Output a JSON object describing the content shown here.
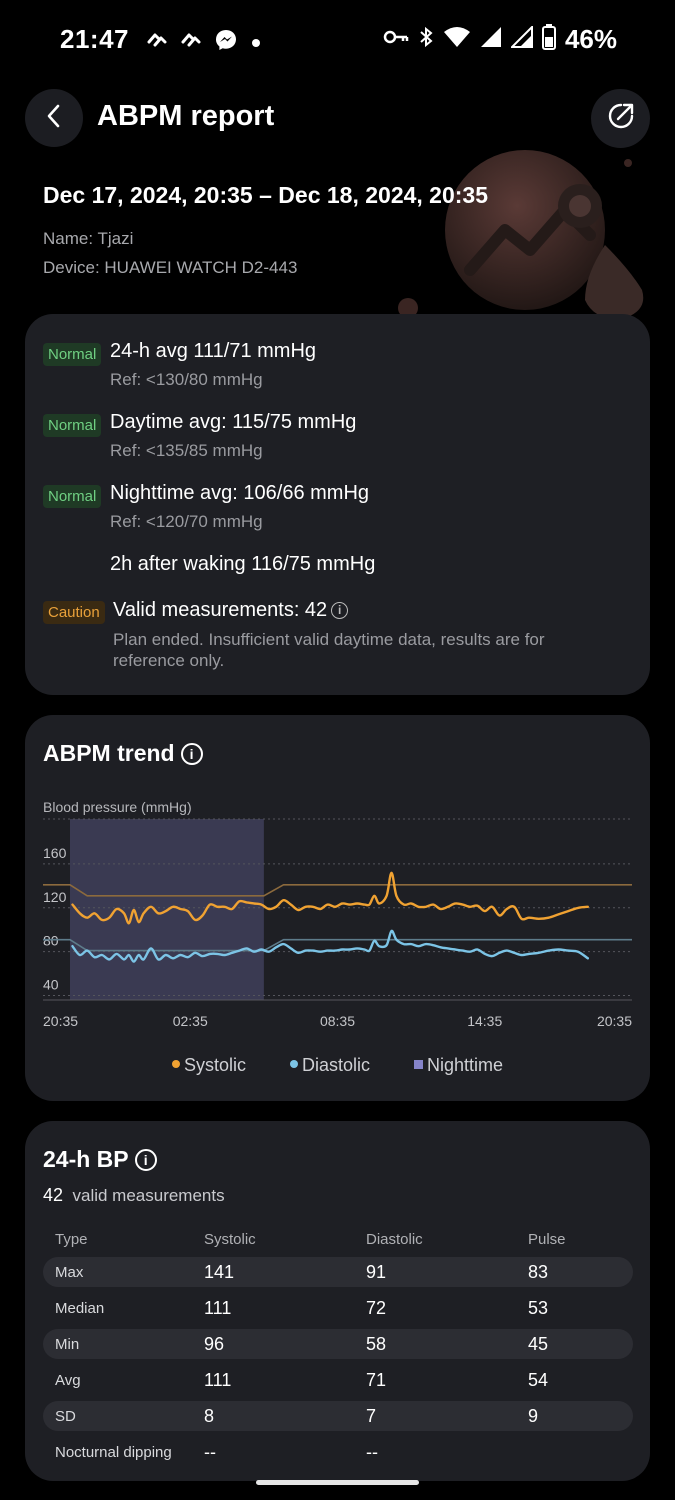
{
  "status_bar": {
    "time": "21:47",
    "battery": "46%",
    "icons": [
      "huawei-health-icon",
      "huawei-health-icon",
      "messenger-icon",
      "dot-icon",
      "vpn-key-icon",
      "bluetooth-icon",
      "wifi-icon",
      "signal-icon",
      "signal-icon",
      "battery-icon"
    ]
  },
  "header": {
    "title": "ABPM report",
    "back_icon": "chevron-left-icon",
    "share_icon": "share-icon"
  },
  "report": {
    "period": "Dec 17, 2024, 20:35 – Dec 18, 2024, 20:35",
    "name": "Name: Tjazi",
    "device": "Device: HUAWEI WATCH D2-443"
  },
  "summary": {
    "items": [
      {
        "tag": "Normal",
        "text": "24-h avg 111/71 mmHg",
        "ref": "Ref: <130/80 mmHg"
      },
      {
        "tag": "Normal",
        "text": "Daytime avg: 115/75 mmHg",
        "ref": "Ref: <135/85 mmHg"
      },
      {
        "tag": "Normal",
        "text": "Nighttime avg: 106/66 mmHg",
        "ref": "Ref: <120/70 mmHg"
      }
    ],
    "waking": "2h after waking 116/75 mmHg",
    "valid": {
      "tag": "Caution",
      "text": "Valid measurements: 42",
      "note_line1": "Plan ended. Insufficient valid daytime data, results are for",
      "note_line2": "reference only."
    }
  },
  "trend": {
    "title": "ABPM trend",
    "info": "i"
  },
  "chart_data": {
    "type": "line",
    "ylabel": "Blood pressure (mmHg)",
    "y_ticks": [
      "160",
      "120",
      "80",
      "40"
    ],
    "x_ticks": [
      "20:35",
      "02:35",
      "08:35",
      "14:35",
      "20:35"
    ],
    "ylim": [
      25,
      190
    ],
    "x_range_hours": [
      0,
      24
    ],
    "nighttime_span_hours": [
      1.1,
      9.0
    ],
    "legend": [
      "Systolic",
      "Diastolic",
      "Nighttime"
    ],
    "colors": {
      "systolic": "#f0a232",
      "diastolic": "#7cc4e6",
      "nighttime": "#8583c9",
      "threshold_sys": "#8c6a3d",
      "threshold_dia": "#5d7b8a"
    },
    "thresholds": {
      "systolic": [
        [
          0,
          130
        ],
        [
          1.1,
          130
        ],
        [
          1.8,
          120
        ],
        [
          9.0,
          120
        ],
        [
          9.8,
          130
        ],
        [
          24,
          130
        ]
      ],
      "diastolic": [
        [
          0,
          80
        ],
        [
          1.1,
          80
        ],
        [
          1.8,
          70
        ],
        [
          9.0,
          70
        ],
        [
          9.8,
          80
        ],
        [
          24,
          80
        ]
      ]
    },
    "series": [
      {
        "name": "Systolic",
        "points": [
          [
            1.2,
            112
          ],
          [
            1.5,
            104
          ],
          [
            1.8,
            100
          ],
          [
            2.1,
            104
          ],
          [
            2.4,
            98
          ],
          [
            2.7,
            100
          ],
          [
            3.0,
            108
          ],
          [
            3.3,
            104
          ],
          [
            3.5,
            95
          ],
          [
            3.7,
            107
          ],
          [
            3.9,
            96
          ],
          [
            4.1,
            104
          ],
          [
            4.4,
            110
          ],
          [
            4.7,
            104
          ],
          [
            5.0,
            106
          ],
          [
            5.3,
            110
          ],
          [
            5.6,
            108
          ],
          [
            5.9,
            106
          ],
          [
            6.2,
            98
          ],
          [
            6.5,
            102
          ],
          [
            6.8,
            112
          ],
          [
            7.1,
            110
          ],
          [
            7.4,
            110
          ],
          [
            7.7,
            108
          ],
          [
            8.0,
            115
          ],
          [
            8.3,
            114
          ],
          [
            8.6,
            113
          ],
          [
            8.9,
            112
          ],
          [
            9.2,
            108
          ],
          [
            9.5,
            110
          ],
          [
            9.8,
            116
          ],
          [
            10.1,
            112
          ],
          [
            10.4,
            107
          ],
          [
            10.7,
            110
          ],
          [
            11.0,
            110
          ],
          [
            11.3,
            108
          ],
          [
            11.6,
            112
          ],
          [
            11.9,
            110
          ],
          [
            12.2,
            113
          ],
          [
            12.5,
            112
          ],
          [
            12.8,
            113
          ],
          [
            13.1,
            112
          ],
          [
            13.3,
            112
          ],
          [
            13.5,
            120
          ],
          [
            13.7,
            113
          ],
          [
            14.0,
            120
          ],
          [
            14.2,
            141
          ],
          [
            14.4,
            120
          ],
          [
            14.7,
            112
          ],
          [
            15.0,
            113
          ],
          [
            15.3,
            110
          ],
          [
            15.6,
            110
          ],
          [
            15.9,
            112
          ],
          [
            16.2,
            108
          ],
          [
            16.5,
            110
          ],
          [
            16.8,
            113
          ],
          [
            17.1,
            112
          ],
          [
            17.4,
            110
          ],
          [
            17.7,
            111
          ],
          [
            18.0,
            106
          ],
          [
            18.3,
            110
          ],
          [
            18.6,
            102
          ],
          [
            18.9,
            108
          ],
          [
            19.2,
            110
          ],
          [
            19.5,
            99
          ],
          [
            19.8,
            100
          ],
          [
            20.2,
            99
          ],
          [
            20.6,
            100
          ],
          [
            21.0,
            103
          ],
          [
            21.4,
            106
          ],
          [
            21.8,
            109
          ],
          [
            22.2,
            110
          ]
        ]
      },
      {
        "name": "Diastolic",
        "points": [
          [
            1.2,
            74
          ],
          [
            1.5,
            66
          ],
          [
            1.8,
            70
          ],
          [
            2.1,
            64
          ],
          [
            2.4,
            66
          ],
          [
            2.7,
            62
          ],
          [
            3.0,
            67
          ],
          [
            3.3,
            62
          ],
          [
            3.5,
            66
          ],
          [
            3.7,
            60
          ],
          [
            3.9,
            66
          ],
          [
            4.1,
            62
          ],
          [
            4.4,
            72
          ],
          [
            4.7,
            62
          ],
          [
            5.0,
            66
          ],
          [
            5.3,
            63
          ],
          [
            5.6,
            66
          ],
          [
            5.9,
            64
          ],
          [
            6.2,
            68
          ],
          [
            6.5,
            65
          ],
          [
            6.8,
            67
          ],
          [
            7.1,
            67
          ],
          [
            7.4,
            66
          ],
          [
            7.7,
            68
          ],
          [
            8.0,
            70
          ],
          [
            8.3,
            72
          ],
          [
            8.6,
            69
          ],
          [
            8.9,
            71
          ],
          [
            9.2,
            69
          ],
          [
            9.5,
            73
          ],
          [
            9.8,
            76
          ],
          [
            10.1,
            72
          ],
          [
            10.4,
            68
          ],
          [
            10.7,
            70
          ],
          [
            11.0,
            70
          ],
          [
            11.3,
            69
          ],
          [
            11.6,
            70
          ],
          [
            11.9,
            70
          ],
          [
            12.2,
            71
          ],
          [
            12.5,
            71
          ],
          [
            12.8,
            72
          ],
          [
            13.1,
            71
          ],
          [
            13.3,
            70
          ],
          [
            13.5,
            79
          ],
          [
            13.7,
            74
          ],
          [
            14.0,
            75
          ],
          [
            14.2,
            88
          ],
          [
            14.4,
            80
          ],
          [
            14.7,
            76
          ],
          [
            15.0,
            76
          ],
          [
            15.3,
            74
          ],
          [
            15.6,
            76
          ],
          [
            15.9,
            75
          ],
          [
            16.2,
            73
          ],
          [
            16.5,
            72
          ],
          [
            16.8,
            71
          ],
          [
            17.1,
            70
          ],
          [
            17.4,
            69
          ],
          [
            17.7,
            71
          ],
          [
            18.0,
            67
          ],
          [
            18.3,
            65
          ],
          [
            18.6,
            68
          ],
          [
            18.9,
            70
          ],
          [
            19.2,
            68
          ],
          [
            19.5,
            66
          ],
          [
            19.8,
            67
          ],
          [
            20.2,
            68
          ],
          [
            20.6,
            70
          ],
          [
            21.0,
            71
          ],
          [
            21.4,
            70
          ],
          [
            21.8,
            69
          ],
          [
            22.2,
            63
          ]
        ]
      }
    ]
  },
  "bp24": {
    "title": "24-h BP",
    "count": "42",
    "count_label": "valid measurements",
    "headers": [
      "Type",
      "Systolic",
      "Diastolic",
      "Pulse"
    ],
    "rows": [
      {
        "type": "Max",
        "sys": "141",
        "dia": "91",
        "pulse": "83"
      },
      {
        "type": "Median",
        "sys": "111",
        "dia": "72",
        "pulse": "53"
      },
      {
        "type": "Min",
        "sys": "96",
        "dia": "58",
        "pulse": "45"
      },
      {
        "type": "Avg",
        "sys": "111",
        "dia": "71",
        "pulse": "54"
      },
      {
        "type": "SD",
        "sys": "8",
        "dia": "7",
        "pulse": "9"
      },
      {
        "type": "Nocturnal dipping",
        "sys": "--",
        "dia": "--",
        "pulse": ""
      }
    ]
  }
}
